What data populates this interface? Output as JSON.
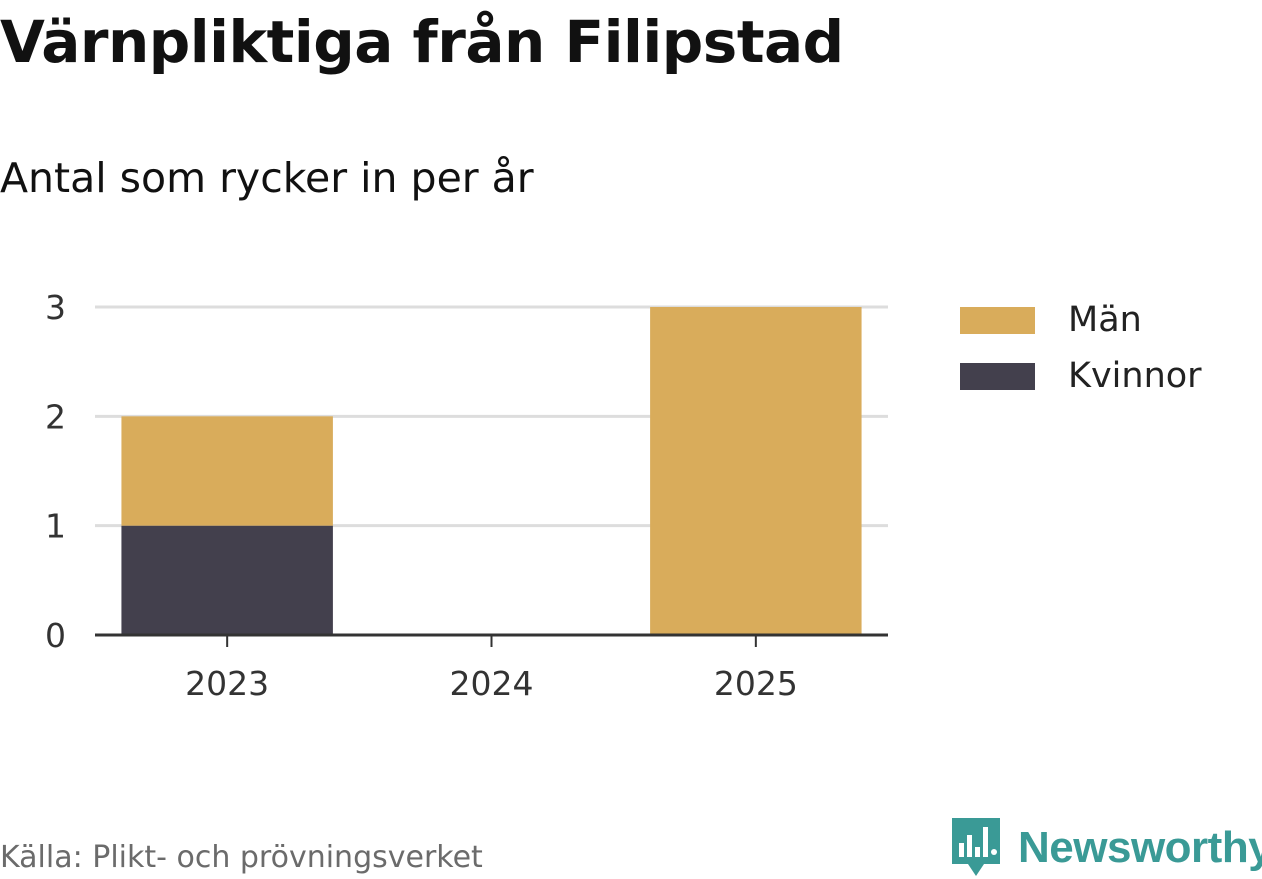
{
  "title": "Värnpliktiga från Filipstad",
  "subtitle": "Antal som rycker in per år",
  "source": "Källa: Plikt- och prövningsverket",
  "logo": {
    "text": "Newsworthy",
    "icon": "newsworthy-chart-bubble-icon",
    "color": "#3a9a96"
  },
  "colors": {
    "man": "#d9ac5b",
    "kvinnor": "#43404d",
    "grid": "#dddddd",
    "axis": "#333333"
  },
  "legend": [
    {
      "label": "Män",
      "color": "#d9ac5b"
    },
    {
      "label": "Kvinnor",
      "color": "#43404d"
    }
  ],
  "chart_data": {
    "type": "bar",
    "stacked": true,
    "title": "Värnpliktiga från Filipstad",
    "subtitle": "Antal som rycker in per år",
    "categories": [
      "2023",
      "2024",
      "2025"
    ],
    "series": [
      {
        "name": "Kvinnor",
        "values": [
          1,
          0,
          0
        ],
        "color": "#43404d"
      },
      {
        "name": "Män",
        "values": [
          1,
          0,
          3
        ],
        "color": "#d9ac5b"
      }
    ],
    "yticks": [
      "0",
      "1",
      "2",
      "3"
    ],
    "ylim": [
      0,
      3
    ],
    "xlabel": "",
    "ylabel": "",
    "grid": true,
    "legend_position": "right"
  }
}
